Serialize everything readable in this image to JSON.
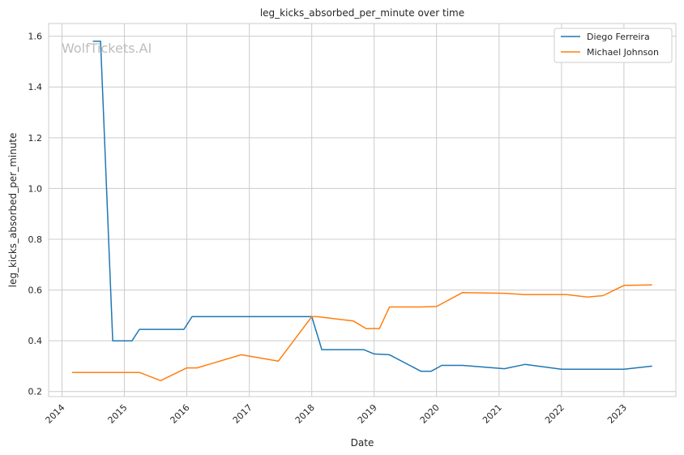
{
  "chart_data": {
    "type": "line",
    "title": "leg_kicks_absorbed_per_minute over time",
    "xlabel": "Date",
    "ylabel": "leg_kicks_absorbed_per_minute",
    "watermark": "WolfTickets.AI",
    "xlim": [
      "2013-10-15",
      "2023-11-01"
    ],
    "ylim": [
      0.18,
      1.65
    ],
    "x_ticks": [
      "2014",
      "2015",
      "2016",
      "2017",
      "2018",
      "2019",
      "2020",
      "2021",
      "2022",
      "2023"
    ],
    "y_ticks": [
      "0.2",
      "0.4",
      "0.6",
      "0.8",
      "1.0",
      "1.2",
      "1.4",
      "1.6"
    ],
    "grid": true,
    "legend_position": "top-right",
    "series": [
      {
        "name": "Diego Ferreira",
        "color": "#1f77b4",
        "points": [
          [
            "2014-07-01",
            1.58
          ],
          [
            "2014-08-15",
            1.58
          ],
          [
            "2014-10-25",
            0.4
          ],
          [
            "2015-02-15",
            0.4
          ],
          [
            "2015-03-30",
            0.445
          ],
          [
            "2015-06-01",
            0.445
          ],
          [
            "2015-12-15",
            0.445
          ],
          [
            "2016-02-01",
            0.495
          ],
          [
            "2017-06-01",
            0.495
          ],
          [
            "2018-01-01",
            0.495
          ],
          [
            "2018-03-01",
            0.365
          ],
          [
            "2018-06-01",
            0.365
          ],
          [
            "2018-11-01",
            0.365
          ],
          [
            "2019-01-01",
            0.348
          ],
          [
            "2019-04-01",
            0.345
          ],
          [
            "2019-10-01",
            0.28
          ],
          [
            "2019-12-01",
            0.28
          ],
          [
            "2020-02-01",
            0.303
          ],
          [
            "2020-06-01",
            0.303
          ],
          [
            "2021-02-01",
            0.29
          ],
          [
            "2021-06-01",
            0.307
          ],
          [
            "2022-01-01",
            0.288
          ],
          [
            "2022-06-01",
            0.288
          ],
          [
            "2023-01-01",
            0.288
          ],
          [
            "2023-06-15",
            0.3
          ]
        ]
      },
      {
        "name": "Michael Johnson",
        "color": "#ff7f0e",
        "points": [
          [
            "2014-03-01",
            0.275
          ],
          [
            "2015-04-01",
            0.275
          ],
          [
            "2015-08-01",
            0.243
          ],
          [
            "2016-01-01",
            0.293
          ],
          [
            "2016-03-01",
            0.293
          ],
          [
            "2016-11-15",
            0.345
          ],
          [
            "2017-06-20",
            0.32
          ],
          [
            "2018-01-01",
            0.495
          ],
          [
            "2018-02-01",
            0.495
          ],
          [
            "2018-09-01",
            0.478
          ],
          [
            "2018-11-15",
            0.448
          ],
          [
            "2019-02-01",
            0.448
          ],
          [
            "2019-04-01",
            0.533
          ],
          [
            "2019-06-01",
            0.533
          ],
          [
            "2019-10-01",
            0.533
          ],
          [
            "2020-01-01",
            0.535
          ],
          [
            "2020-06-01",
            0.59
          ],
          [
            "2021-02-01",
            0.587
          ],
          [
            "2021-06-01",
            0.582
          ],
          [
            "2022-02-01",
            0.582
          ],
          [
            "2022-06-01",
            0.572
          ],
          [
            "2022-09-01",
            0.578
          ],
          [
            "2023-01-01",
            0.618
          ],
          [
            "2023-06-15",
            0.62
          ]
        ]
      }
    ]
  }
}
